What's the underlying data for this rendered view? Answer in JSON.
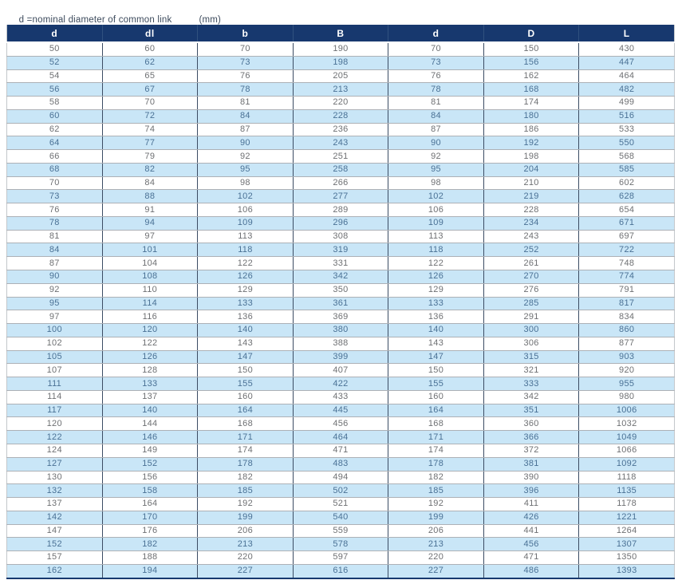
{
  "caption": {
    "text": "d =nominal diameter of common link",
    "unit": "(mm)"
  },
  "colors": {
    "header_bg": "#17386e",
    "header_text": "#ffffff",
    "row_alt_bg": "#c9e6f7",
    "row_text": "#6e7073",
    "row_alt_text": "#4a7195",
    "column_divider": "#3b4c63",
    "row_divider": "#adb1b6",
    "caption_text": "#3c4a5c"
  },
  "table": {
    "columns": [
      "d",
      "dl",
      "b",
      "B",
      "d",
      "D",
      "L"
    ],
    "rows": [
      [
        50,
        60,
        70,
        190,
        70,
        150,
        430
      ],
      [
        52,
        62,
        73,
        198,
        73,
        156,
        447
      ],
      [
        54,
        65,
        76,
        205,
        76,
        162,
        464
      ],
      [
        56,
        67,
        78,
        213,
        78,
        168,
        482
      ],
      [
        58,
        70,
        81,
        220,
        81,
        174,
        499
      ],
      [
        60,
        72,
        84,
        228,
        84,
        180,
        516
      ],
      [
        62,
        74,
        87,
        236,
        87,
        186,
        533
      ],
      [
        64,
        77,
        90,
        243,
        90,
        192,
        550
      ],
      [
        66,
        79,
        92,
        251,
        92,
        198,
        568
      ],
      [
        68,
        82,
        95,
        258,
        95,
        204,
        585
      ],
      [
        70,
        84,
        98,
        266,
        98,
        210,
        602
      ],
      [
        73,
        88,
        102,
        277,
        102,
        219,
        628
      ],
      [
        76,
        91,
        106,
        289,
        106,
        228,
        654
      ],
      [
        78,
        94,
        109,
        296,
        109,
        234,
        671
      ],
      [
        81,
        97,
        113,
        308,
        113,
        243,
        697
      ],
      [
        84,
        101,
        118,
        319,
        118,
        252,
        722
      ],
      [
        87,
        104,
        122,
        331,
        122,
        261,
        748
      ],
      [
        90,
        108,
        126,
        342,
        126,
        270,
        774
      ],
      [
        92,
        110,
        129,
        350,
        129,
        276,
        791
      ],
      [
        95,
        114,
        133,
        361,
        133,
        285,
        817
      ],
      [
        97,
        116,
        136,
        369,
        136,
        291,
        834
      ],
      [
        100,
        120,
        140,
        380,
        140,
        300,
        860
      ],
      [
        102,
        122,
        143,
        388,
        143,
        306,
        877
      ],
      [
        105,
        126,
        147,
        399,
        147,
        315,
        903
      ],
      [
        107,
        128,
        150,
        407,
        150,
        321,
        920
      ],
      [
        111,
        133,
        155,
        422,
        155,
        333,
        955
      ],
      [
        114,
        137,
        160,
        433,
        160,
        342,
        980
      ],
      [
        117,
        140,
        164,
        445,
        164,
        351,
        1006
      ],
      [
        120,
        144,
        168,
        456,
        168,
        360,
        1032
      ],
      [
        122,
        146,
        171,
        464,
        171,
        366,
        1049
      ],
      [
        124,
        149,
        174,
        471,
        174,
        372,
        1066
      ],
      [
        127,
        152,
        178,
        483,
        178,
        381,
        1092
      ],
      [
        130,
        156,
        182,
        494,
        182,
        390,
        1118
      ],
      [
        132,
        158,
        185,
        502,
        185,
        396,
        1135
      ],
      [
        137,
        164,
        192,
        521,
        192,
        411,
        1178
      ],
      [
        142,
        170,
        199,
        540,
        199,
        426,
        1221
      ],
      [
        147,
        176,
        206,
        559,
        206,
        441,
        1264
      ],
      [
        152,
        182,
        213,
        578,
        213,
        456,
        1307
      ],
      [
        157,
        188,
        220,
        597,
        220,
        471,
        1350
      ],
      [
        162,
        194,
        227,
        616,
        227,
        486,
        1393
      ]
    ]
  }
}
